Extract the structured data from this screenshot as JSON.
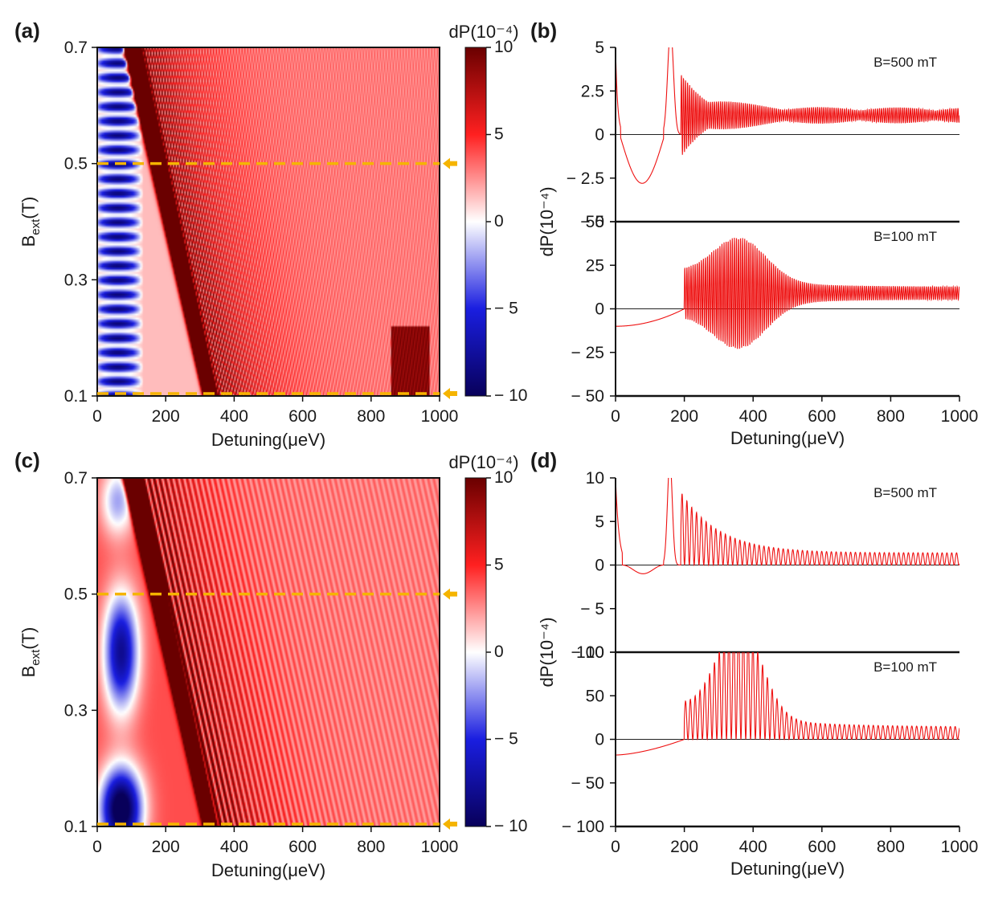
{
  "figure": {
    "panel_labels": [
      "(a)",
      "(b)",
      "(c)",
      "(d)"
    ]
  },
  "colors": {
    "trace": "#ee1111",
    "marker": "#f5b400",
    "colormap": [
      "#08005a",
      "#1a1ee0",
      "#ffffff",
      "#ff2020",
      "#6a0000"
    ]
  },
  "chart_data": [
    {
      "panel": "(a)",
      "type": "heatmap",
      "xlabel": "Detuning(μeV)",
      "ylabel_main": "B",
      "ylabel_sub": "ext",
      "ylabel_unit": "(T)",
      "xlim": [
        0,
        1000
      ],
      "ylim": [
        0.1,
        0.7
      ],
      "xticks": [
        0,
        200,
        400,
        600,
        800,
        1000
      ],
      "yticks": [
        0.1,
        0.3,
        0.5,
        0.7
      ],
      "colorbar": {
        "label": "dP(10⁻⁴)",
        "range": [
          -10,
          10
        ],
        "ticks": [
          10,
          5,
          0,
          -5,
          -10
        ]
      },
      "markers": [
        0.5,
        0.1
      ],
      "model": "oscillatory"
    },
    {
      "panel": "(b)",
      "type": "line",
      "xlabel": "Detuning(μeV)",
      "ylabel": "dP(10⁻⁴)",
      "xlim": [
        0,
        1000
      ],
      "xticks": [
        0,
        200,
        400,
        600,
        800,
        1000
      ],
      "subplots": [
        {
          "annotation": "B=500 mT",
          "ylim": [
            -5,
            5
          ],
          "yticks": [
            5,
            2.5,
            0,
            -2.5,
            -5
          ],
          "ytick_labels": [
            "5",
            "2.5",
            "0",
            "− 2.5",
            "− 5"
          ],
          "B": 0.5
        },
        {
          "annotation": "B=100 mT",
          "ylim": [
            -50,
            50
          ],
          "yticks": [
            50,
            25,
            0,
            -25,
            -50
          ],
          "ytick_labels": [
            "50",
            "25",
            "0",
            "− 25",
            "− 50"
          ],
          "B": 0.1
        }
      ],
      "model": "oscillatory"
    },
    {
      "panel": "(c)",
      "type": "heatmap",
      "xlabel": "Detuning(μeV)",
      "ylabel_main": "B",
      "ylabel_sub": "ext",
      "ylabel_unit": "(T)",
      "xlim": [
        0,
        1000
      ],
      "ylim": [
        0.1,
        0.7
      ],
      "xticks": [
        0,
        200,
        400,
        600,
        800,
        1000
      ],
      "yticks": [
        0.1,
        0.3,
        0.5,
        0.7
      ],
      "colorbar": {
        "label": "dP(10⁻⁴)",
        "range": [
          -10,
          10
        ],
        "ticks": [
          10,
          5,
          0,
          -5,
          -10
        ]
      },
      "markers": [
        0.5,
        0.1
      ],
      "model": "smooth"
    },
    {
      "panel": "(d)",
      "type": "line",
      "xlabel": "Detuning(μeV)",
      "ylabel": "dP(10⁻⁴)",
      "xlim": [
        0,
        1000
      ],
      "xticks": [
        0,
        200,
        400,
        600,
        800,
        1000
      ],
      "subplots": [
        {
          "annotation": "B=500 mT",
          "ylim": [
            -10,
            10
          ],
          "yticks": [
            10,
            5,
            0,
            -5,
            -10
          ],
          "ytick_labels": [
            "10",
            "5",
            "0",
            "− 5",
            "− 10"
          ],
          "B": 0.5
        },
        {
          "annotation": "B=100 mT",
          "ylim": [
            -100,
            100
          ],
          "yticks": [
            100,
            50,
            0,
            -50,
            -100
          ],
          "ytick_labels": [
            "100",
            "50",
            "0",
            "− 50",
            "− 100"
          ],
          "B": 0.1
        }
      ],
      "model": "smooth"
    }
  ]
}
